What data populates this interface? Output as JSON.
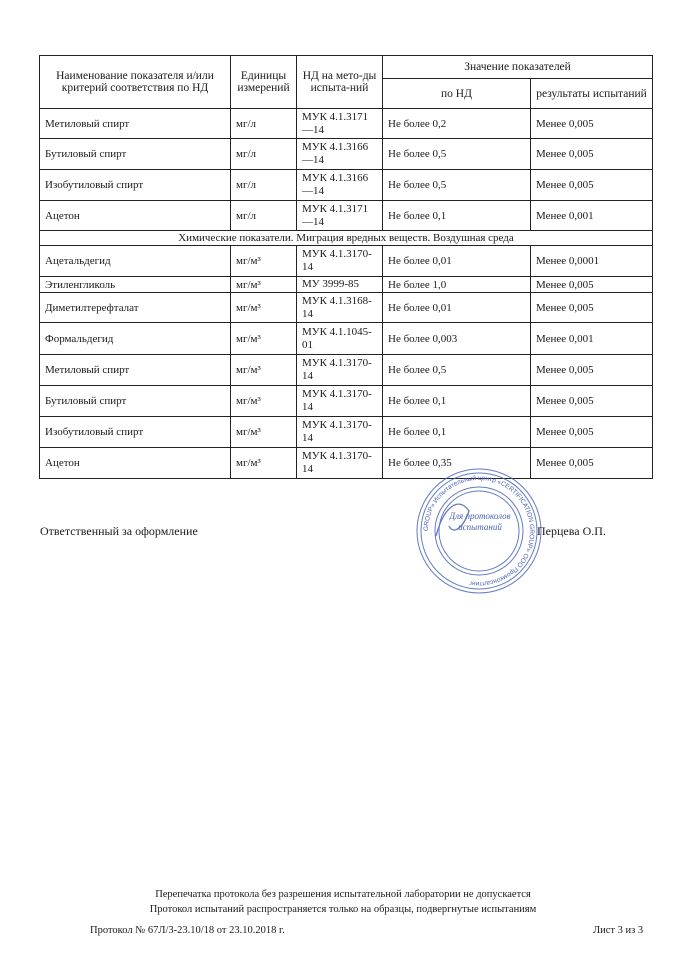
{
  "table": {
    "headers": {
      "name": "Наименование показателя и/или критерий соответствия по НД",
      "units": "Единицы измерений",
      "method": "НД на мето-ды испыта-ний",
      "values": "Значение показателей",
      "norm": "по НД",
      "result": "результаты испытаний"
    },
    "rows_group1": [
      {
        "name": "Метиловый спирт",
        "unit": "мг/л",
        "method": "МУК 4.1.3171—14",
        "norm": "Не более 0,2",
        "result": "Менее 0,005"
      },
      {
        "name": "Бутиловый спирт",
        "unit": "мг/л",
        "method": "МУК 4.1.3166—14",
        "norm": "Не более 0,5",
        "result": "Менее 0,005"
      },
      {
        "name": "Изобутиловый спирт",
        "unit": "мг/л",
        "method": "МУК 4.1.3166—14",
        "norm": "Не более 0,5",
        "result": "Менее 0,005"
      },
      {
        "name": "Ацетон",
        "unit": "мг/л",
        "method": "МУК 4.1.3171—14",
        "norm": "Не более 0,1",
        "result": "Менее 0,001"
      }
    ],
    "section_title": "Химические показатели. Миграция вредных веществ. Воздушная среда",
    "rows_group2": [
      {
        "name": "Ацетальдегид",
        "unit": "мг/м³",
        "method": "МУК 4.1.3170-14",
        "norm": "Не более 0,01",
        "result": "Менее 0,0001"
      },
      {
        "name": "Этиленгликоль",
        "unit": "мг/м³",
        "method": "МУ 3999-85",
        "norm": "Не более 1,0",
        "result": "Менее 0,005"
      },
      {
        "name": "Диметилтерефталат",
        "unit": "мг/м³",
        "method": "МУК 4.1.3168-14",
        "norm": "Не более 0,01",
        "result": "Менее 0,005"
      },
      {
        "name": "Формальдегид",
        "unit": "мг/м³",
        "method": "МУК 4.1.1045-01",
        "norm": "Не более 0,003",
        "result": "Менее 0,001"
      },
      {
        "name": "Метиловый спирт",
        "unit": "мг/м³",
        "method": "МУК 4.1.3170-14",
        "norm": "Не более 0,5",
        "result": "Менее 0,005"
      },
      {
        "name": "Бутиловый спирт",
        "unit": "мг/м³",
        "method": "МУК 4.1.3170-14",
        "norm": "Не более 0,1",
        "result": "Менее 0,005"
      },
      {
        "name": "Изобутиловый спирт",
        "unit": "мг/м³",
        "method": "МУК 4.1.3170-14",
        "norm": "Не более 0,1",
        "result": "Менее 0,005"
      },
      {
        "name": "Ацетон",
        "unit": "мг/м³",
        "method": "МУК 4.1.3170-14",
        "norm": "Не более 0,35",
        "result": "Менее 0,005"
      }
    ]
  },
  "signature": {
    "label": "Ответственный за оформление",
    "name": "Перцева  О.П."
  },
  "stamp": {
    "center_text": "Для протоколов испытаний",
    "ring_text": "GROUP» Испытательный центр «CERTIFICATION GROUP» ООО Промконсалтинг",
    "color": "#4a63b8"
  },
  "footer": {
    "note1": "Перепечатка протокола без разрешения испытательной лаборатории не допускается",
    "note2": "Протокол испытаний распространяется только на образцы, подвергнутые испытаниям",
    "protocol": "Протокол № 67Л/3-23.10/18 от 23.10.2018 г.",
    "sheet": "Лист 3 из 3"
  }
}
